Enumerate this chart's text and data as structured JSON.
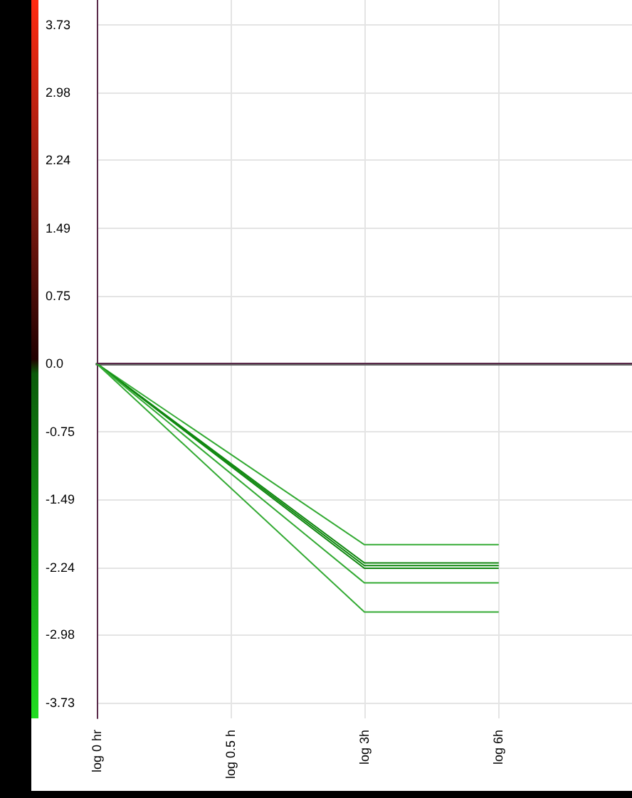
{
  "chart_data": {
    "type": "line",
    "categories": [
      "log 0 hr",
      "log 0.5 h",
      "log 3h",
      "log 6h"
    ],
    "series": [
      {
        "color": "#33aa33",
        "values": [
          0,
          null,
          -1.99,
          -1.99
        ]
      },
      {
        "color": "#118811",
        "values": [
          0,
          null,
          -2.19,
          -2.19
        ]
      },
      {
        "color": "#118811",
        "values": [
          0,
          null,
          -2.22,
          -2.22
        ]
      },
      {
        "color": "#118811",
        "values": [
          0,
          null,
          -2.25,
          -2.25
        ]
      },
      {
        "color": "#33aa33",
        "values": [
          0,
          null,
          -2.41,
          -2.41
        ]
      },
      {
        "color": "#33aa33",
        "values": [
          0,
          null,
          -2.73,
          -2.73
        ]
      }
    ],
    "ylim": [
      -3.9,
      4.0
    ],
    "yticks": [
      3.73,
      2.98,
      2.24,
      1.49,
      0.75,
      {
        "value": 0,
        "label": "0.0"
      },
      -0.75,
      -1.49,
      -2.24,
      -2.98,
      -3.73
    ],
    "grid": true,
    "marker": "none",
    "line_style": "solid"
  }
}
